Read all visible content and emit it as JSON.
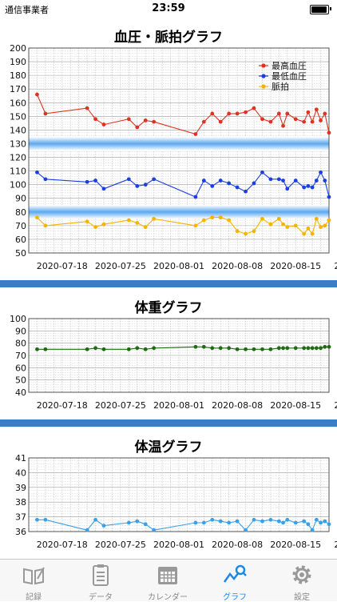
{
  "status_bar": {
    "carrier": "通信事業者",
    "time": "23:59"
  },
  "colors": {
    "accent": "#1e88e5",
    "divider": "#3a7cc6",
    "bp_high": "#e03222",
    "bp_low": "#1b3fe0",
    "pulse": "#f4b400",
    "weight": "#1e6b13",
    "temp": "#3aa0ea"
  },
  "tabs": [
    {
      "label": "記録",
      "icon": "notebook-pen-icon",
      "active": false
    },
    {
      "label": "データ",
      "icon": "clipboard-list-icon",
      "active": false
    },
    {
      "label": "カレンダー",
      "icon": "calendar-icon",
      "active": false
    },
    {
      "label": "グラフ",
      "icon": "graph-search-icon",
      "active": true
    },
    {
      "label": "設定",
      "icon": "gear-icon",
      "active": false
    }
  ],
  "chart_data": [
    {
      "type": "line",
      "title": "血圧・脈拍グラフ",
      "ylim": [
        50,
        200
      ],
      "yticks": [
        50,
        60,
        70,
        80,
        90,
        100,
        110,
        120,
        130,
        140,
        150,
        160,
        170,
        180,
        190,
        200
      ],
      "xlim": [
        0,
        36
      ],
      "xtick_labels": [
        "2020-07-18",
        "2020-07-25",
        "2020-08-01",
        "2020-08-08",
        "2020-08-15",
        "2020-08-"
      ],
      "xtick_days": [
        4,
        11,
        18,
        25,
        32,
        39
      ],
      "grid": true,
      "legend_position": "top-right",
      "bands": [
        [
          125,
          135
        ],
        [
          75,
          85
        ]
      ],
      "series": [
        {
          "name": "最高血圧",
          "color": "#e03222",
          "x": [
            1,
            2,
            7,
            8,
            9,
            12,
            13,
            14,
            15,
            20,
            21,
            22,
            23,
            24,
            25,
            26,
            27,
            28,
            29,
            30,
            30.5,
            31,
            32,
            33,
            33.5,
            34,
            34.5,
            35,
            35.5,
            36
          ],
          "values": [
            166,
            152,
            156,
            148,
            144,
            148,
            142,
            147,
            146,
            137,
            146,
            152,
            146,
            152,
            152,
            153,
            156,
            148,
            146,
            152,
            143,
            152,
            148,
            146,
            153,
            146,
            155,
            147,
            152,
            138
          ]
        },
        {
          "name": "最低血圧",
          "color": "#1b3fe0",
          "x": [
            1,
            2,
            7,
            8,
            9,
            12,
            13,
            14,
            15,
            20,
            21,
            22,
            23,
            24,
            25,
            26,
            27,
            28,
            29,
            30,
            30.5,
            31,
            32,
            33,
            33.5,
            34,
            34.5,
            35,
            35.5,
            36
          ],
          "values": [
            109,
            104,
            102,
            103,
            97,
            104,
            99,
            100,
            104,
            91,
            103,
            99,
            103,
            101,
            98,
            95,
            101,
            109,
            104,
            104,
            103,
            97,
            103,
            98,
            99,
            98,
            103,
            109,
            103,
            91
          ]
        },
        {
          "name": "脈拍",
          "color": "#f4b400",
          "x": [
            1,
            2,
            7,
            8,
            9,
            12,
            13,
            14,
            15,
            20,
            21,
            22,
            23,
            24,
            25,
            26,
            27,
            28,
            29,
            30,
            30.5,
            31,
            32,
            33,
            33.5,
            34,
            34.5,
            35,
            35.5,
            36
          ],
          "values": [
            76,
            70,
            73,
            69,
            71,
            74,
            72,
            69,
            75,
            70,
            74,
            76,
            76,
            74,
            66,
            64,
            66,
            75,
            71,
            75,
            71,
            69,
            70,
            64,
            68,
            64,
            75,
            69,
            70,
            74
          ]
        }
      ]
    },
    {
      "type": "line",
      "title": "体重グラフ",
      "ylim": [
        40,
        100
      ],
      "yticks": [
        40,
        50,
        60,
        70,
        80,
        90,
        100
      ],
      "xlim": [
        0,
        36
      ],
      "xtick_labels": [
        "2020-07-18",
        "2020-07-25",
        "2020-08-01",
        "2020-08-08",
        "2020-08-15",
        "2020-08-"
      ],
      "xtick_days": [
        4,
        11,
        18,
        25,
        32,
        39
      ],
      "grid": true,
      "series": [
        {
          "color": "#1e6b13",
          "x": [
            1,
            2,
            7,
            8,
            9,
            12,
            13,
            14,
            15,
            20,
            21,
            22,
            23,
            24,
            25,
            26,
            27,
            28,
            29,
            30,
            30.5,
            31,
            32,
            33,
            33.5,
            34,
            34.5,
            35,
            35.5,
            36
          ],
          "values": [
            75,
            75,
            75,
            76,
            75,
            75,
            76,
            75,
            76,
            77,
            77,
            76,
            76,
            76,
            75,
            75,
            75,
            75,
            75,
            76,
            76,
            76,
            76,
            76,
            76,
            76,
            76,
            76,
            77,
            77
          ]
        }
      ]
    },
    {
      "type": "line",
      "title": "体温グラフ",
      "ylim": [
        36,
        41
      ],
      "yticks": [
        36,
        37,
        38,
        39,
        40,
        41
      ],
      "xlim": [
        0,
        36
      ],
      "xtick_labels": [
        "2020-07-18",
        "2020-07-25",
        "2020-08-01",
        "2020-08-08",
        "2020-08-15",
        "2020-08-"
      ],
      "xtick_days": [
        4,
        11,
        18,
        25,
        32,
        39
      ],
      "grid": true,
      "series": [
        {
          "color": "#3aa0ea",
          "x": [
            1,
            2,
            7,
            8,
            9,
            12,
            13,
            14,
            15,
            20,
            21,
            22,
            23,
            24,
            25,
            26,
            27,
            28,
            29,
            30,
            30.5,
            31,
            32,
            33,
            33.5,
            34,
            34.5,
            35,
            35.5,
            36
          ],
          "values": [
            36.8,
            36.8,
            36.1,
            36.8,
            36.4,
            36.6,
            36.7,
            36.5,
            36.1,
            36.6,
            36.6,
            36.8,
            36.7,
            36.6,
            36.7,
            36.1,
            36.8,
            36.7,
            36.8,
            36.7,
            36.6,
            36.8,
            36.6,
            36.7,
            36.5,
            36.1,
            36.8,
            36.6,
            36.7,
            36.5
          ]
        }
      ]
    }
  ]
}
